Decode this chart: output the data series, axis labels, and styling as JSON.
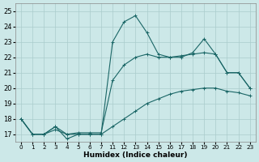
{
  "xlabel": "Humidex (Indice chaleur)",
  "bg_color": "#cce8e8",
  "grid_color": "#aacccc",
  "line_color": "#1a6666",
  "ylim": [
    16.5,
    25.5
  ],
  "yticks": [
    17,
    18,
    19,
    20,
    21,
    22,
    23,
    24,
    25
  ],
  "xtick_labels": [
    "0",
    "1",
    "2",
    "3",
    "4",
    "5",
    "6",
    "7",
    "11",
    "12",
    "13",
    "14",
    "15",
    "16",
    "17",
    "18",
    "19",
    "20",
    "21",
    "22",
    "23"
  ],
  "series": [
    {
      "y": [
        18,
        17,
        17,
        17.5,
        16.7,
        17,
        17,
        17,
        23,
        24.3,
        24.7,
        23.6,
        22.2,
        22.0,
        22.0,
        22.3,
        23.2,
        22.2,
        21.0,
        21.0,
        20.0
      ]
    },
    {
      "y": [
        18,
        17,
        17,
        17.5,
        17.0,
        17.1,
        17.1,
        17.1,
        20.5,
        21.5,
        22.0,
        22.2,
        22.0,
        22.0,
        22.1,
        22.2,
        22.3,
        22.2,
        21.0,
        21.0,
        20.0
      ]
    },
    {
      "y": [
        18,
        17,
        17,
        17.3,
        17.0,
        17.0,
        17.0,
        17.0,
        17.5,
        18.0,
        18.5,
        19.0,
        19.3,
        19.6,
        19.8,
        19.9,
        20.0,
        20.0,
        19.8,
        19.7,
        19.5
      ]
    }
  ]
}
